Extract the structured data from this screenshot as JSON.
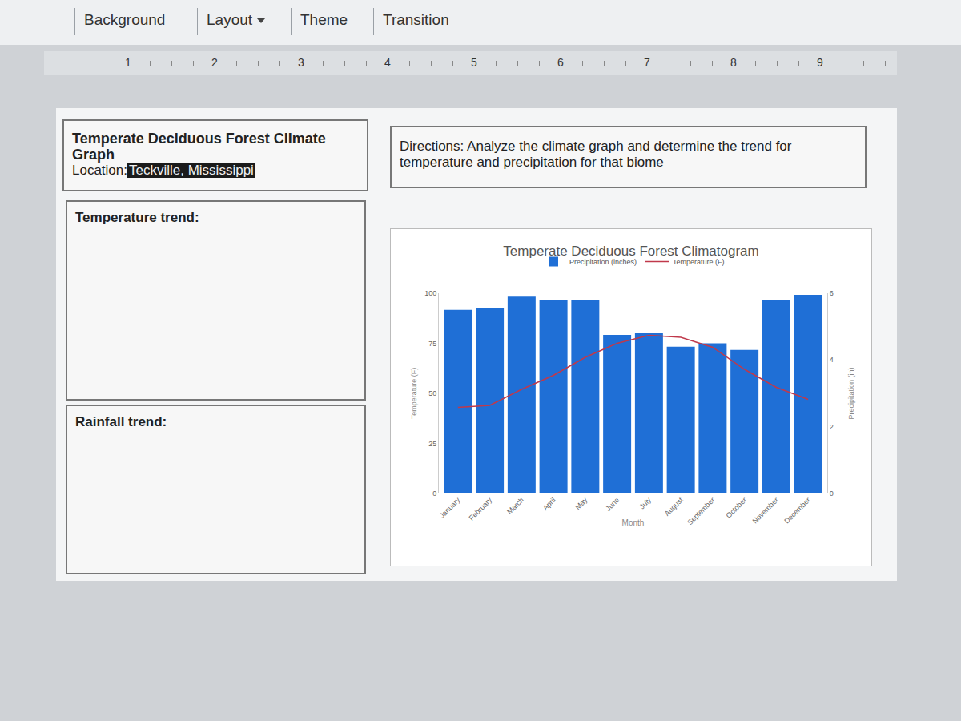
{
  "toolbar": {
    "buttons": [
      "Background",
      "Layout",
      "Theme",
      "Transition"
    ]
  },
  "ruler": [
    1,
    2,
    3,
    4,
    5,
    6,
    7,
    8,
    9
  ],
  "slide": {
    "title": "Temperate Deciduous Forest Climate Graph",
    "location_label": "Location:",
    "location": "Teckville, Mississippi",
    "directions": "Directions: Analyze the climate graph and determine the trend for temperature and precipitation for that biome",
    "temperature_trend_label": "Temperature trend:",
    "rainfall_trend_label": "Rainfall trend:"
  },
  "chart_data": {
    "type": "bar",
    "title": "Temperate Deciduous Forest Climatogram",
    "x_label": "Month",
    "y_label": "Temperature (F)",
    "y2_label": "Precipitation (in)",
    "categories": [
      "January",
      "February",
      "March",
      "April",
      "May",
      "June",
      "July",
      "August",
      "September",
      "October",
      "November",
      "December"
    ],
    "series": [
      {
        "name": "Precipitation (inches)",
        "type": "bar",
        "axis": "y2",
        "color": "#1f6fd6",
        "values": [
          5.5,
          5.55,
          5.9,
          5.8,
          5.8,
          4.75,
          4.8,
          4.4,
          4.5,
          4.3,
          5.8,
          5.95
        ]
      },
      {
        "name": "Temperature (F)",
        "type": "line",
        "color": "#c0394b",
        "values": [
          43,
          44,
          52,
          59,
          68,
          75,
          79,
          78,
          73,
          62,
          53,
          47
        ]
      }
    ],
    "ylim": [
      0,
      100
    ],
    "yticks": [
      0,
      25,
      50,
      75,
      100
    ],
    "y2lim": [
      0,
      6
    ],
    "y2ticks": [
      0,
      2,
      4,
      6
    ],
    "legend": "top",
    "grid": false
  }
}
